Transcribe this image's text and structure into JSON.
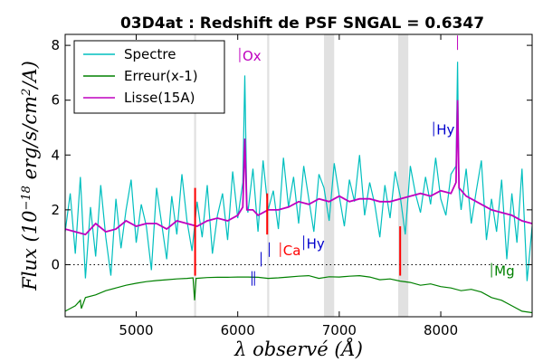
{
  "chart_data": {
    "type": "line",
    "title": "03D4at : Redshift de PSF SNGAL = 0.6347",
    "xlabel": "λ observé (Å)",
    "ylabel": "Flux (10^-18 erg/s/cm²/A)",
    "xlim": [
      4300,
      8900
    ],
    "ylim": [
      -1.9,
      8.4
    ],
    "xticks": [
      5000,
      6000,
      7000,
      8000
    ],
    "yticks": [
      0,
      2,
      4,
      6,
      8
    ],
    "legend_position": "top-left",
    "series": [
      {
        "name": "Spectre",
        "color": "#00bfbf",
        "x": [
          4300,
          4350,
          4400,
          4450,
          4500,
          4550,
          4600,
          4650,
          4700,
          4750,
          4800,
          4850,
          4900,
          4950,
          5000,
          5050,
          5100,
          5150,
          5200,
          5250,
          5300,
          5350,
          5400,
          5450,
          5500,
          5550,
          5600,
          5650,
          5700,
          5750,
          5800,
          5850,
          5900,
          5950,
          6000,
          6050,
          6070,
          6090,
          6100,
          6150,
          6200,
          6250,
          6300,
          6350,
          6400,
          6450,
          6500,
          6550,
          6600,
          6650,
          6700,
          6750,
          6800,
          6850,
          6900,
          6950,
          7000,
          7050,
          7100,
          7150,
          7200,
          7250,
          7300,
          7350,
          7400,
          7450,
          7500,
          7550,
          7600,
          7650,
          7700,
          7750,
          7800,
          7850,
          7900,
          7950,
          8000,
          8050,
          8100,
          8150,
          8165,
          8180,
          8200,
          8250,
          8300,
          8350,
          8400,
          8450,
          8500,
          8550,
          8600,
          8650,
          8700,
          8750,
          8800,
          8850,
          8900
        ],
        "values": [
          1.2,
          2.6,
          0.4,
          3.2,
          -0.5,
          2.1,
          0.3,
          2.9,
          1.0,
          -0.4,
          2.4,
          0.6,
          2.0,
          3.1,
          0.8,
          2.2,
          1.4,
          -0.2,
          2.8,
          1.5,
          0.2,
          2.5,
          1.1,
          3.3,
          1.6,
          0.5,
          2.3,
          1.0,
          2.9,
          0.4,
          1.8,
          2.6,
          0.9,
          3.4,
          1.7,
          3.0,
          6.9,
          2.2,
          1.9,
          3.5,
          1.2,
          3.8,
          2.0,
          2.7,
          1.3,
          3.9,
          2.1,
          3.2,
          1.5,
          3.6,
          2.4,
          1.2,
          3.3,
          2.8,
          1.6,
          3.7,
          2.5,
          1.4,
          3.1,
          2.3,
          4.0,
          1.8,
          3.0,
          2.2,
          1.0,
          2.9,
          1.7,
          3.4,
          2.5,
          1.1,
          3.6,
          2.6,
          1.9,
          3.2,
          2.2,
          3.9,
          2.4,
          1.8,
          3.3,
          3.6,
          7.4,
          2.8,
          2.0,
          3.5,
          1.5,
          2.7,
          3.8,
          0.9,
          2.4,
          1.2,
          3.1,
          0.2,
          2.6,
          0.8,
          3.5,
          -0.6,
          1.4
        ]
      },
      {
        "name": "Erreur(x-1)",
        "color": "#008000",
        "x": [
          4300,
          4400,
          4450,
          4460,
          4500,
          4600,
          4700,
          4800,
          4900,
          5000,
          5100,
          5200,
          5300,
          5400,
          5500,
          5560,
          5575,
          5590,
          5700,
          5800,
          5900,
          6000,
          6100,
          6200,
          6300,
          6400,
          6500,
          6600,
          6700,
          6800,
          6900,
          7000,
          7100,
          7200,
          7300,
          7400,
          7500,
          7600,
          7700,
          7800,
          7900,
          8000,
          8100,
          8200,
          8300,
          8400,
          8500,
          8600,
          8700,
          8800,
          8900
        ],
        "values": [
          -1.7,
          -1.5,
          -1.3,
          -1.6,
          -1.2,
          -1.1,
          -0.95,
          -0.85,
          -0.75,
          -0.68,
          -0.62,
          -0.58,
          -0.55,
          -0.52,
          -0.5,
          -0.48,
          -1.3,
          -0.5,
          -0.47,
          -0.46,
          -0.46,
          -0.45,
          -0.45,
          -0.46,
          -0.5,
          -0.48,
          -0.45,
          -0.42,
          -0.4,
          -0.5,
          -0.44,
          -0.45,
          -0.42,
          -0.4,
          -0.45,
          -0.55,
          -0.52,
          -0.6,
          -0.65,
          -0.75,
          -0.7,
          -0.8,
          -0.85,
          -0.95,
          -0.9,
          -1.0,
          -1.2,
          -1.3,
          -1.5,
          -1.7,
          -1.75
        ]
      },
      {
        "name": "Lisse(15A)",
        "color": "#bf00bf",
        "x": [
          4300,
          4400,
          4500,
          4600,
          4700,
          4800,
          4900,
          5000,
          5100,
          5200,
          5300,
          5400,
          5500,
          5600,
          5700,
          5800,
          5900,
          6000,
          6050,
          6070,
          6090,
          6150,
          6200,
          6300,
          6400,
          6500,
          6600,
          6700,
          6800,
          6900,
          7000,
          7100,
          7200,
          7300,
          7400,
          7500,
          7600,
          7700,
          7800,
          7900,
          8000,
          8100,
          8150,
          8165,
          8180,
          8250,
          8300,
          8400,
          8500,
          8600,
          8700,
          8800,
          8900
        ],
        "values": [
          1.3,
          1.2,
          1.1,
          1.5,
          1.2,
          1.3,
          1.6,
          1.4,
          1.5,
          1.5,
          1.3,
          1.6,
          1.5,
          1.4,
          1.6,
          1.7,
          1.6,
          1.8,
          2.1,
          4.6,
          2.0,
          2.0,
          1.8,
          2.0,
          2.0,
          2.1,
          2.3,
          2.2,
          2.4,
          2.3,
          2.5,
          2.3,
          2.4,
          2.4,
          2.3,
          2.3,
          2.4,
          2.5,
          2.6,
          2.5,
          2.7,
          2.6,
          3.0,
          6.0,
          2.8,
          2.5,
          2.4,
          2.2,
          2.0,
          1.9,
          1.8,
          1.6,
          1.5
        ]
      }
    ],
    "reference_lines": [
      {
        "y": 0,
        "style": "dotted",
        "color": "#000000"
      }
    ],
    "masked_bands": [
      [
        5570,
        5590
      ],
      [
        6290,
        6310
      ],
      [
        6850,
        6950
      ],
      [
        7580,
        7680
      ]
    ],
    "sky_markers": [
      {
        "x": 5580,
        "y1": -0.4,
        "y2": 2.8,
        "color": "#ff0000"
      },
      {
        "x": 6290,
        "y1": 1.1,
        "y2": 2.6,
        "color": "#ff0000"
      },
      {
        "x": 7600,
        "y1": -0.4,
        "y2": 1.4,
        "color": "#ff0000"
      }
    ],
    "annotations": [
      {
        "text": "Ox",
        "x": 6020,
        "y": 7.45,
        "color": "#bf00bf",
        "tick": true
      },
      {
        "text": "Ca",
        "x": 6420,
        "y": 0.35,
        "color": "#ff0000",
        "tick": true
      },
      {
        "text": "Hy",
        "x": 6650,
        "y": 0.6,
        "color": "#0000cc",
        "tick": true
      },
      {
        "text": "Hy",
        "x": 7930,
        "y": 4.75,
        "color": "#0000cc",
        "tick": true
      },
      {
        "text": "Mg",
        "x": 8500,
        "y": -0.4,
        "color": "#008000",
        "tick": true
      },
      {
        "text": "",
        "x": 8165,
        "y": 7.9,
        "color": "#bf00bf",
        "tick": true
      },
      {
        "text": "",
        "x": 6310,
        "y": 0.35,
        "color": "#0000cc",
        "tick": true
      },
      {
        "text": "",
        "x": 6230,
        "y": 0.0,
        "color": "#0000cc",
        "tick": true
      },
      {
        "text": "",
        "x": 6140,
        "y": -0.7,
        "color": "#0000cc",
        "tick": true
      },
      {
        "text": "",
        "x": 6165,
        "y": -0.7,
        "color": "#0000cc",
        "tick": true
      }
    ]
  }
}
